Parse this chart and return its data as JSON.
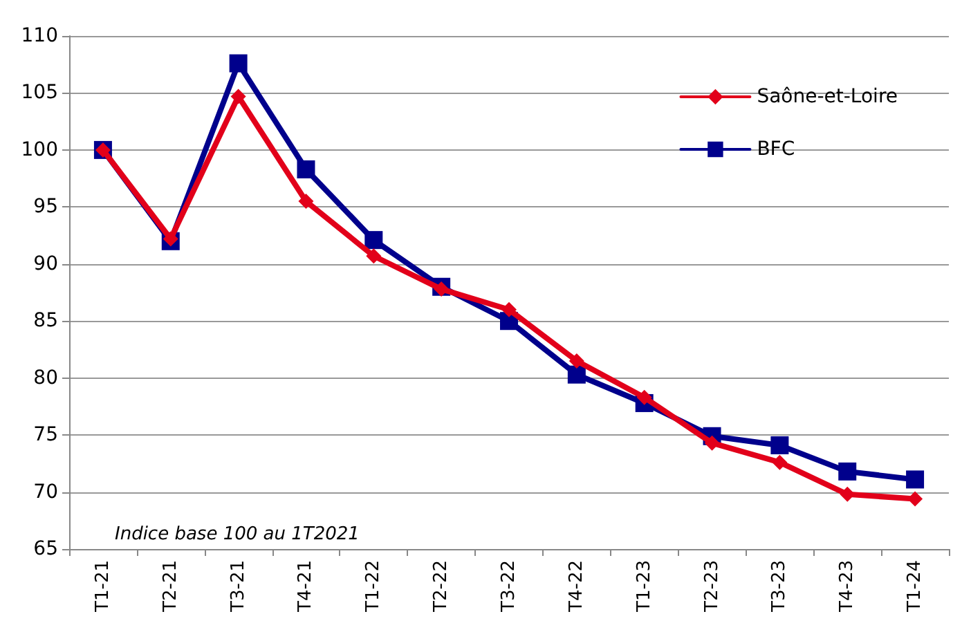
{
  "chart_data": {
    "type": "line",
    "categories": [
      "T1-21",
      "T2-21",
      "T3-21",
      "T4-21",
      "T1-22",
      "T2-22",
      "T3-22",
      "T4-22",
      "T1-23",
      "T2-23",
      "T3-23",
      "T4-23",
      "T1-24"
    ],
    "series": [
      {
        "name": "Saône-et-Loire",
        "color": "#e2001a",
        "marker": "diamond",
        "values": [
          100,
          92.2,
          104.7,
          95.5,
          90.7,
          87.8,
          86.0,
          81.5,
          78.3,
          74.3,
          72.6,
          69.8,
          69.4
        ]
      },
      {
        "name": "BFC",
        "color": "#00008c",
        "marker": "square",
        "values": [
          100,
          92.0,
          107.6,
          98.3,
          92.1,
          88.0,
          85.0,
          80.3,
          77.8,
          74.9,
          74.1,
          71.8,
          71.1
        ]
      }
    ],
    "ylim": [
      65,
      110
    ],
    "yticks": [
      65,
      70,
      75,
      80,
      85,
      90,
      95,
      100,
      105,
      110
    ],
    "grid": "y",
    "legend": "top right",
    "line_style": "solid",
    "annotations": [
      "Indice base 100 au 1T2021"
    ]
  }
}
